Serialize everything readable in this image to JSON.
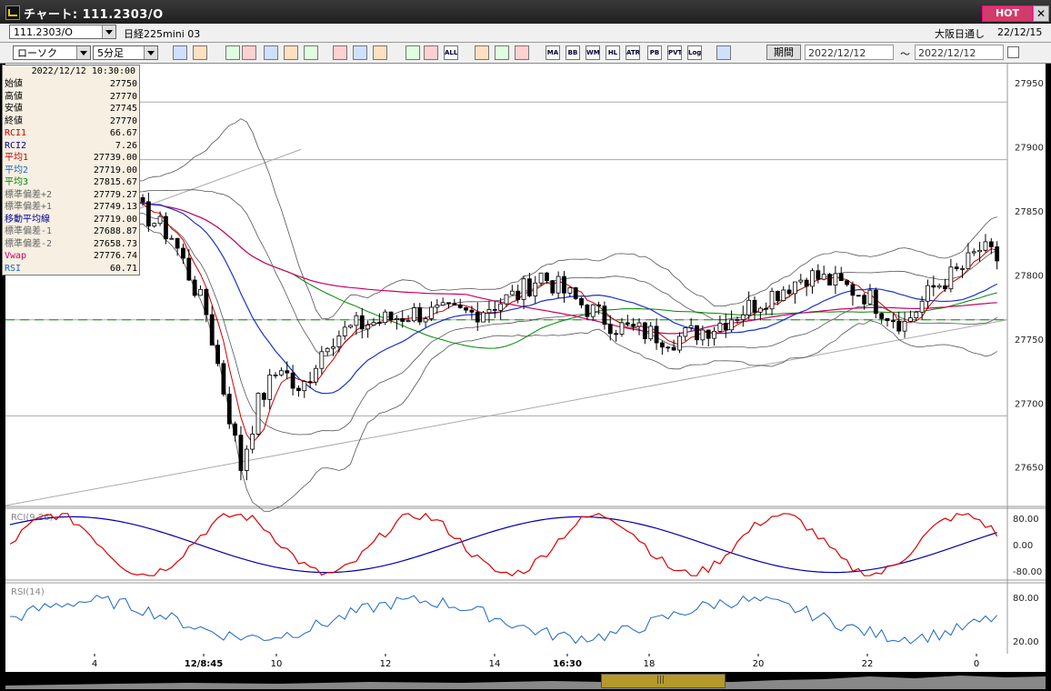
{
  "window": {
    "title": "チャート: 111.2303/O",
    "hot_label": "HOT",
    "close_label": "✕",
    "icon": "chart-app-icon"
  },
  "selector": {
    "symbol": "111.2303/O",
    "instrument": "日経225mini 03",
    "market": "大阪日通し",
    "date": "22/12/15"
  },
  "toolbar": {
    "chart_type": "ローソク",
    "interval": "5分足",
    "buttons": [
      "magnifier-icon",
      "cursor-icon",
      "zoom-icon",
      "zoom-in-icon",
      "line-icon",
      "bar-icon",
      "lock-icon",
      "pen-icon",
      "arrow-icon",
      "redo-icon",
      "bar-split-icon",
      "bar-split2-icon",
      "ALL",
      "settings-icon",
      "tool-icon",
      "palette-icon",
      "MA",
      "BB",
      "WMA",
      "HL",
      "ATR",
      "PB",
      "PVT",
      "Log",
      "refresh-icon"
    ],
    "period_label": "期間",
    "date_from": "2022/12/12",
    "date_sep": "〜",
    "date_to": "2022/12/12"
  },
  "info_panel": {
    "header": "2022/12/12  10:30:00",
    "rows": [
      {
        "label": "始値",
        "value": "27750",
        "color": "#000000"
      },
      {
        "label": "高値",
        "value": "27770",
        "color": "#000000"
      },
      {
        "label": "安値",
        "value": "27745",
        "color": "#000000"
      },
      {
        "label": "終値",
        "value": "27770",
        "color": "#000000"
      },
      {
        "label": "RCI1",
        "value": "66.67",
        "color": "#cc0000"
      },
      {
        "label": "RCI2",
        "value": "7.26",
        "color": "#000099"
      },
      {
        "label": "平均1",
        "value": "27739.00",
        "color": "#cc0000"
      },
      {
        "label": "平均2",
        "value": "27719.00",
        "color": "#1a66cc"
      },
      {
        "label": "平均3",
        "value": "27815.67",
        "color": "#008800"
      },
      {
        "label": "標準偏差+2",
        "value": "27779.27",
        "color": "#666666"
      },
      {
        "label": "標準偏差+1",
        "value": "27749.13",
        "color": "#666666"
      },
      {
        "label": "移動平均線",
        "value": "27719.00",
        "color": "#000099"
      },
      {
        "label": "標準偏差-1",
        "value": "27688.87",
        "color": "#666666"
      },
      {
        "label": "標準偏差-2",
        "value": "27658.73",
        "color": "#666666"
      },
      {
        "label": "Vwap",
        "value": "27776.74",
        "color": "#cc0066"
      },
      {
        "label": "RSI",
        "value": "60.71",
        "color": "#1a66cc"
      }
    ]
  },
  "price_axis": {
    "labels": [
      "27950",
      "27900",
      "27850",
      "27800",
      "27750",
      "27700",
      "27650"
    ]
  },
  "rci_pane": {
    "label": "RCI(9,26)",
    "labels": [
      "80.00",
      "0.00",
      "-80.00"
    ]
  },
  "rsi_pane": {
    "label": "RSI(14)",
    "labels": [
      "80.00",
      "20.00"
    ]
  },
  "time_axis": {
    "labels": [
      "4",
      "12/8:45",
      "10",
      "12",
      "14",
      "16:30",
      "18",
      "20",
      "22",
      "0"
    ]
  },
  "colors": {
    "up": "#ffffff",
    "down": "#000000",
    "ma_short": "#cc0000",
    "ma_mid": "#1a33cc",
    "ma_long": "#008800",
    "vwap": "#cc0066",
    "bands": "#555555",
    "rci_fast": "#dd0000",
    "rci_slow": "#0000aa",
    "rsi": "#1a66cc",
    "dashed": "#009900",
    "accent_hot": "#d23c6a"
  },
  "chart_data": {
    "type": "candlestick",
    "y_range": [
      27620,
      27965
    ],
    "dashed_level": 27765,
    "candles_ohlc_sample": [
      [
        27850,
        27870,
        27835,
        27855
      ],
      [
        27855,
        27862,
        27840,
        27845
      ],
      [
        27845,
        27850,
        27820,
        27825
      ],
      [
        27825,
        27830,
        27790,
        27795
      ],
      [
        27795,
        27800,
        27760,
        27765
      ],
      [
        27765,
        27770,
        27700,
        27705
      ],
      [
        27705,
        27715,
        27640,
        27650
      ],
      [
        27650,
        27700,
        27645,
        27695
      ],
      [
        27695,
        27730,
        27680,
        27720
      ],
      [
        27720,
        27740,
        27690,
        27700
      ],
      [
        27700,
        27745,
        27695,
        27740
      ],
      [
        27740,
        27760,
        27715,
        27725
      ],
      [
        27725,
        27760,
        27720,
        27755
      ],
      [
        27755,
        27770,
        27740,
        27750
      ],
      [
        27750,
        27760,
        27735,
        27745
      ],
      [
        27745,
        27770,
        27740,
        27765
      ],
      [
        27765,
        27790,
        27760,
        27785
      ],
      [
        27785,
        27800,
        27770,
        27780
      ],
      [
        27780,
        27795,
        27760,
        27770
      ],
      [
        27770,
        27785,
        27765,
        27780
      ],
      [
        27780,
        27795,
        27770,
        27775
      ],
      [
        27775,
        27780,
        27755,
        27760
      ],
      [
        27760,
        27765,
        27740,
        27745
      ],
      [
        27745,
        27760,
        27740,
        27755
      ],
      [
        27755,
        27765,
        27750,
        27760
      ],
      [
        27760,
        27790,
        27758,
        27785
      ],
      [
        27785,
        27795,
        27770,
        27780
      ],
      [
        27780,
        27790,
        27770,
        27775
      ],
      [
        27775,
        27785,
        27760,
        27770
      ],
      [
        27770,
        27790,
        27765,
        27785
      ],
      [
        27785,
        27810,
        27780,
        27800
      ],
      [
        27800,
        27815,
        27790,
        27810
      ],
      [
        27810,
        27812,
        27785,
        27790
      ],
      [
        27790,
        27800,
        27775,
        27780
      ],
      [
        27780,
        27810,
        27778,
        27805
      ],
      [
        27805,
        27830,
        27800,
        27825
      ],
      [
        27825,
        27830,
        27800,
        27810
      ],
      [
        27810,
        27815,
        27795,
        27800
      ],
      [
        27800,
        27820,
        27795,
        27815
      ],
      [
        27815,
        27835,
        27810,
        27830
      ]
    ]
  }
}
